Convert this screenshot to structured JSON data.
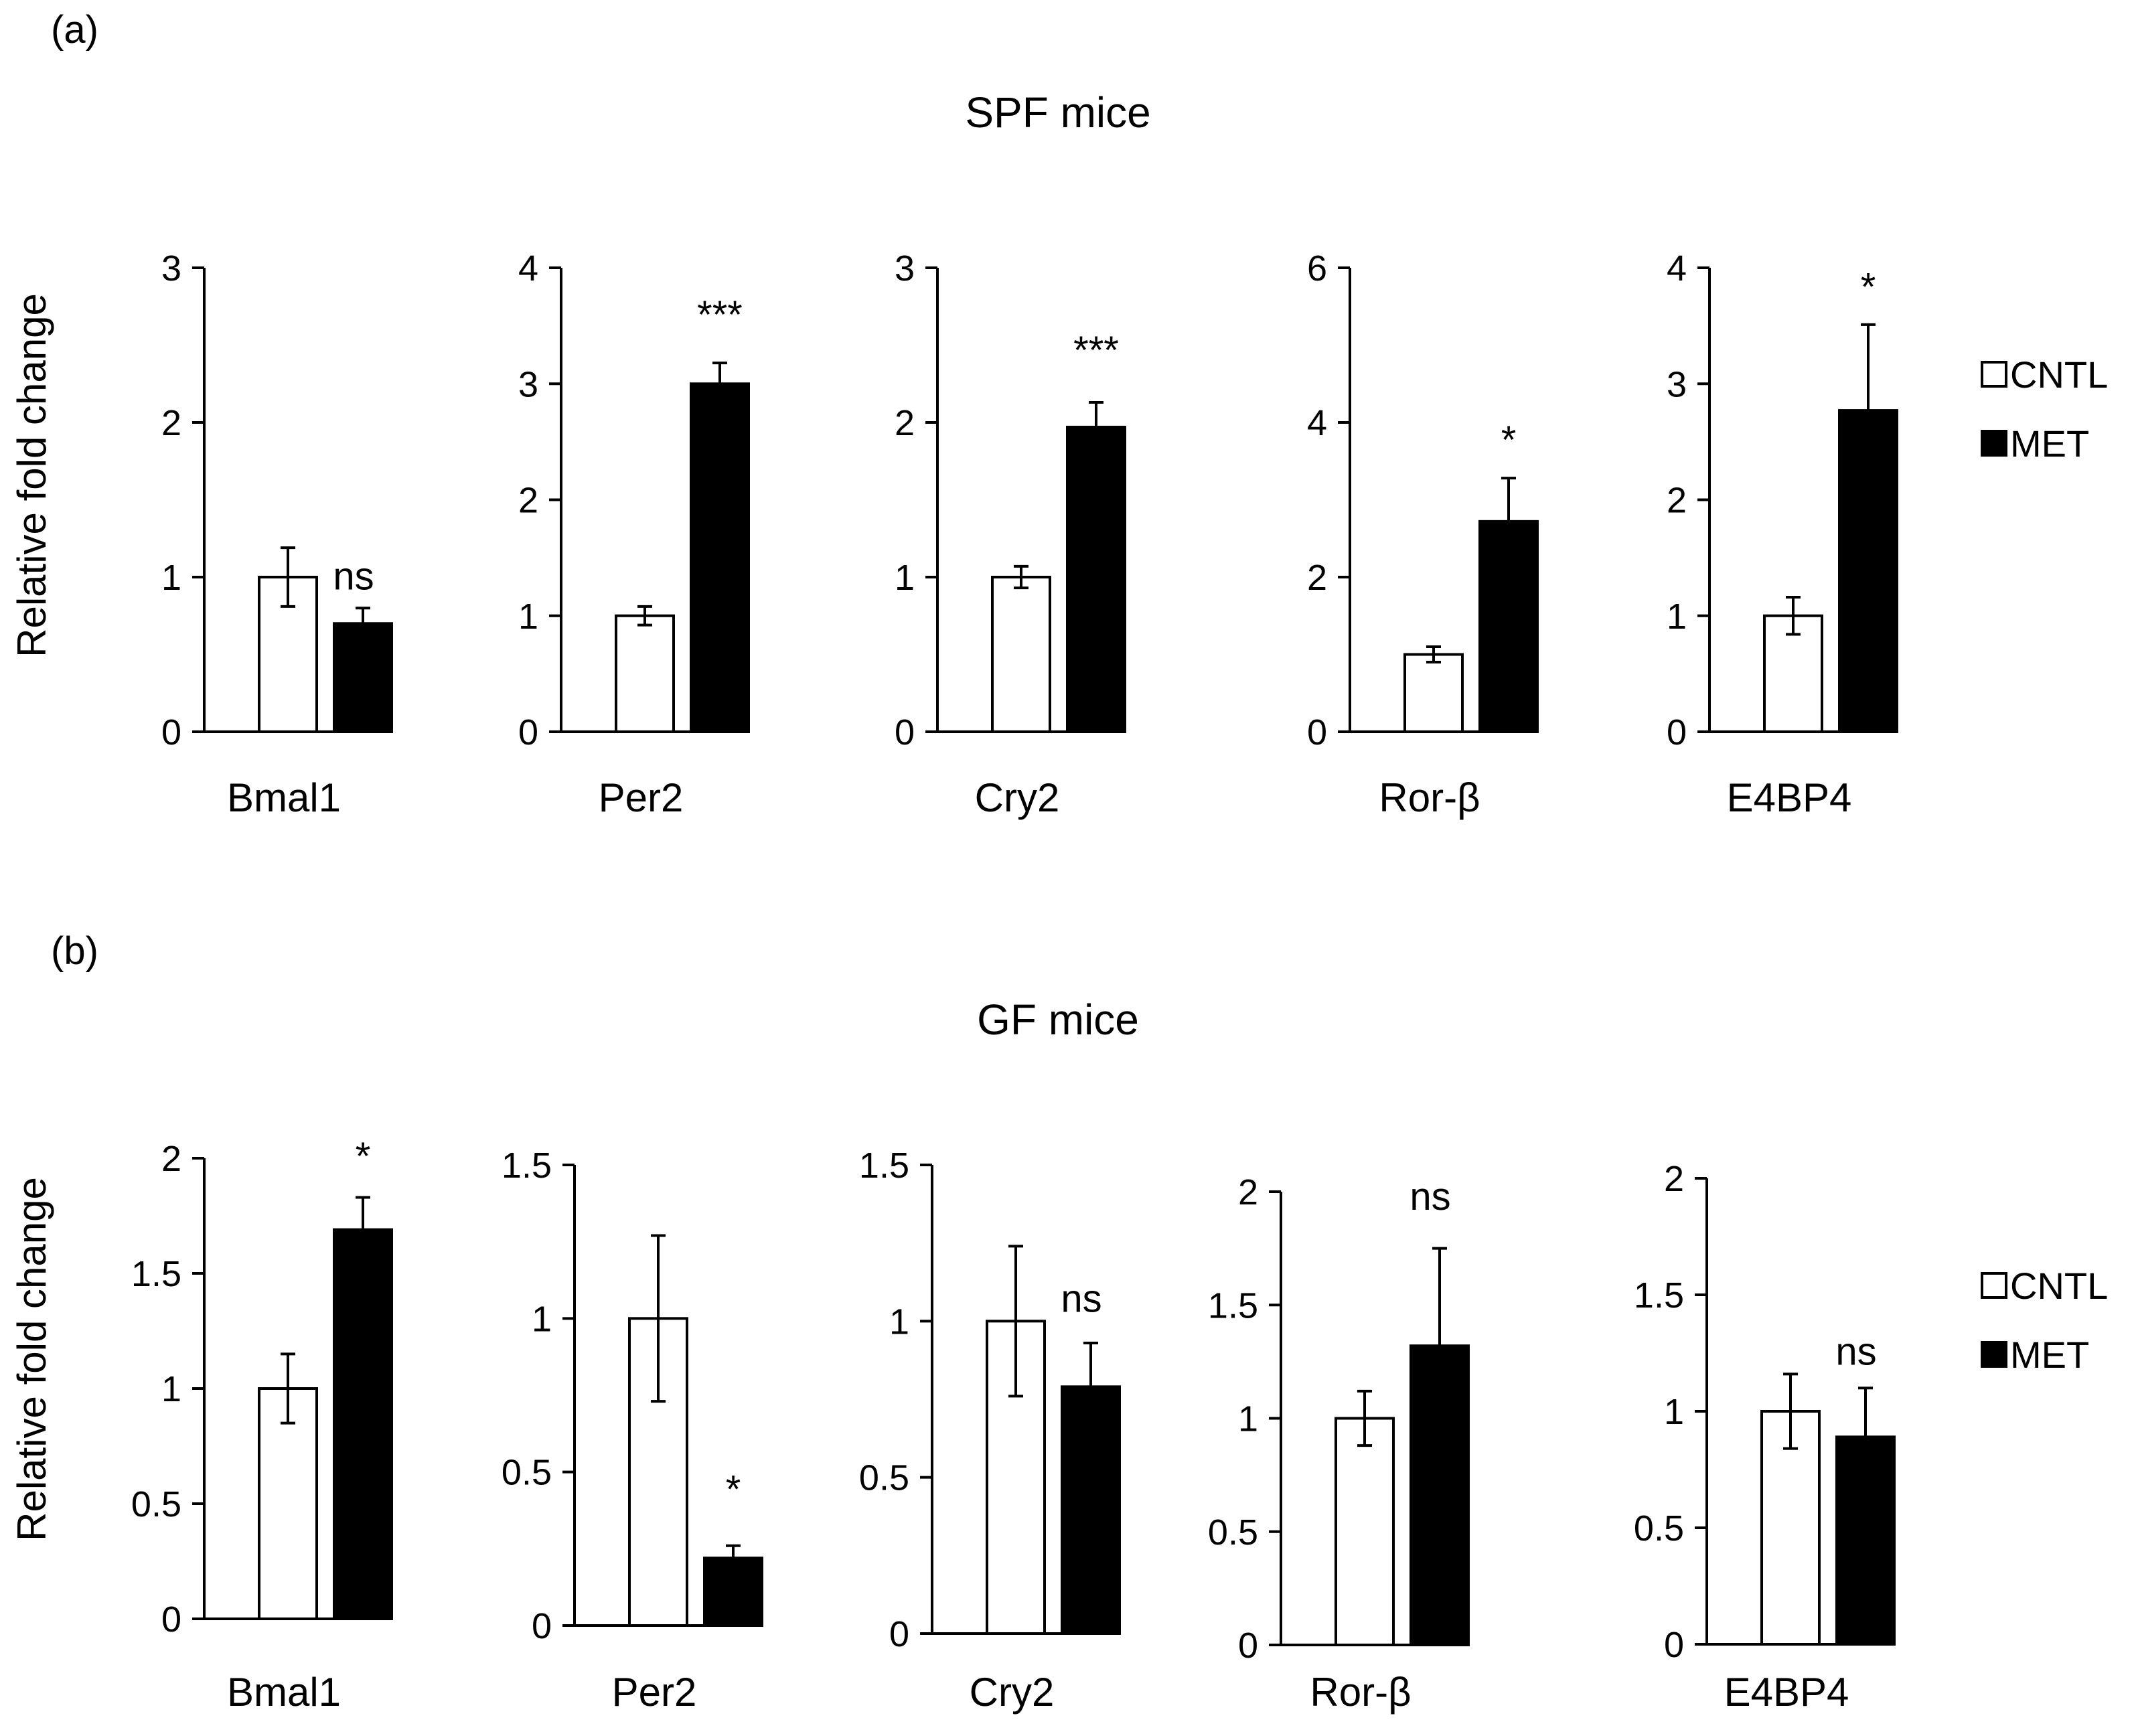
{
  "legend": {
    "items": [
      {
        "label": "CNTL",
        "color": "#ffffff"
      },
      {
        "label": "MET",
        "color": "#000000"
      }
    ]
  },
  "chart_data": [
    {
      "panel": "(a)",
      "type": "bar",
      "title": "SPF mice",
      "ylabel": "Relative fold change",
      "series_names": [
        "CNTL",
        "MET"
      ],
      "charts": [
        {
          "gene": "Bmal1",
          "ylim": [
            0,
            3
          ],
          "ticks": [
            "0",
            "1",
            "2",
            "3"
          ],
          "values": [
            1.0,
            0.7
          ],
          "errors": [
            0.19,
            0.1
          ],
          "sig": "ns",
          "sig_y": 0.92
        },
        {
          "gene": "Per2",
          "ylim": [
            0,
            4
          ],
          "ticks": [
            "0",
            "1",
            "2",
            "3",
            "4"
          ],
          "values": [
            1.0,
            3.0
          ],
          "errors": [
            0.08,
            0.18
          ],
          "sig": "***",
          "sig_y": 3.48
        },
        {
          "gene": "Cry2",
          "ylim": [
            0,
            3
          ],
          "ticks": [
            "0",
            "1",
            "2",
            "3"
          ],
          "values": [
            1.0,
            1.97
          ],
          "errors": [
            0.07,
            0.16
          ],
          "sig": "***",
          "sig_y": 2.38
        },
        {
          "gene": "Ror-β",
          "ylim": [
            0,
            6
          ],
          "ticks": [
            "0",
            "2",
            "4",
            "6"
          ],
          "values": [
            1.0,
            2.72
          ],
          "errors": [
            0.1,
            0.56
          ],
          "sig": "*",
          "sig_y": 3.6
        },
        {
          "gene": "E4BP4",
          "ylim": [
            0,
            4
          ],
          "ticks": [
            "0",
            "1",
            "2",
            "3",
            "4"
          ],
          "values": [
            1.0,
            2.77
          ],
          "errors": [
            0.16,
            0.74
          ],
          "sig": "*",
          "sig_y": 3.72
        }
      ]
    },
    {
      "panel": "(b)",
      "type": "bar",
      "title": "GF mice",
      "ylabel": "Relative fold change",
      "series_names": [
        "CNTL",
        "MET"
      ],
      "charts": [
        {
          "gene": "Bmal1",
          "ylim": [
            0,
            2
          ],
          "ticks": [
            "0",
            "0.5",
            "1",
            "1.5",
            "2"
          ],
          "values": [
            1.0,
            1.69
          ],
          "errors": [
            0.15,
            0.14
          ],
          "sig": "*",
          "sig_y": 1.95
        },
        {
          "gene": "Per2",
          "ylim": [
            0,
            1.5
          ],
          "ticks": [
            "0",
            "0.5",
            "1",
            "1.5"
          ],
          "values": [
            1.0,
            0.22
          ],
          "errors": [
            0.27,
            0.04
          ],
          "sig": "*",
          "sig_y": 0.4
        },
        {
          "gene": "Cry2",
          "ylim": [
            0,
            1.5
          ],
          "ticks": [
            "0",
            "0.5",
            "1",
            "1.5"
          ],
          "values": [
            1.0,
            0.79
          ],
          "errors": [
            0.24,
            0.14
          ],
          "sig": "ns",
          "sig_y": 1.03
        },
        {
          "gene": "Ror-β",
          "ylim": [
            0,
            2
          ],
          "ticks": [
            "0",
            "0.5",
            "1",
            "1.5",
            "2"
          ],
          "values": [
            1.0,
            1.32
          ],
          "errors": [
            0.12,
            0.43
          ],
          "sig": "ns",
          "sig_y": 1.92
        },
        {
          "gene": "E4BP4",
          "ylim": [
            0,
            2
          ],
          "ticks": [
            "0",
            "0.5",
            "1",
            "1.5",
            "2"
          ],
          "values": [
            1.0,
            0.89
          ],
          "errors": [
            0.16,
            0.21
          ],
          "sig": "ns",
          "sig_y": 1.2
        }
      ]
    }
  ]
}
